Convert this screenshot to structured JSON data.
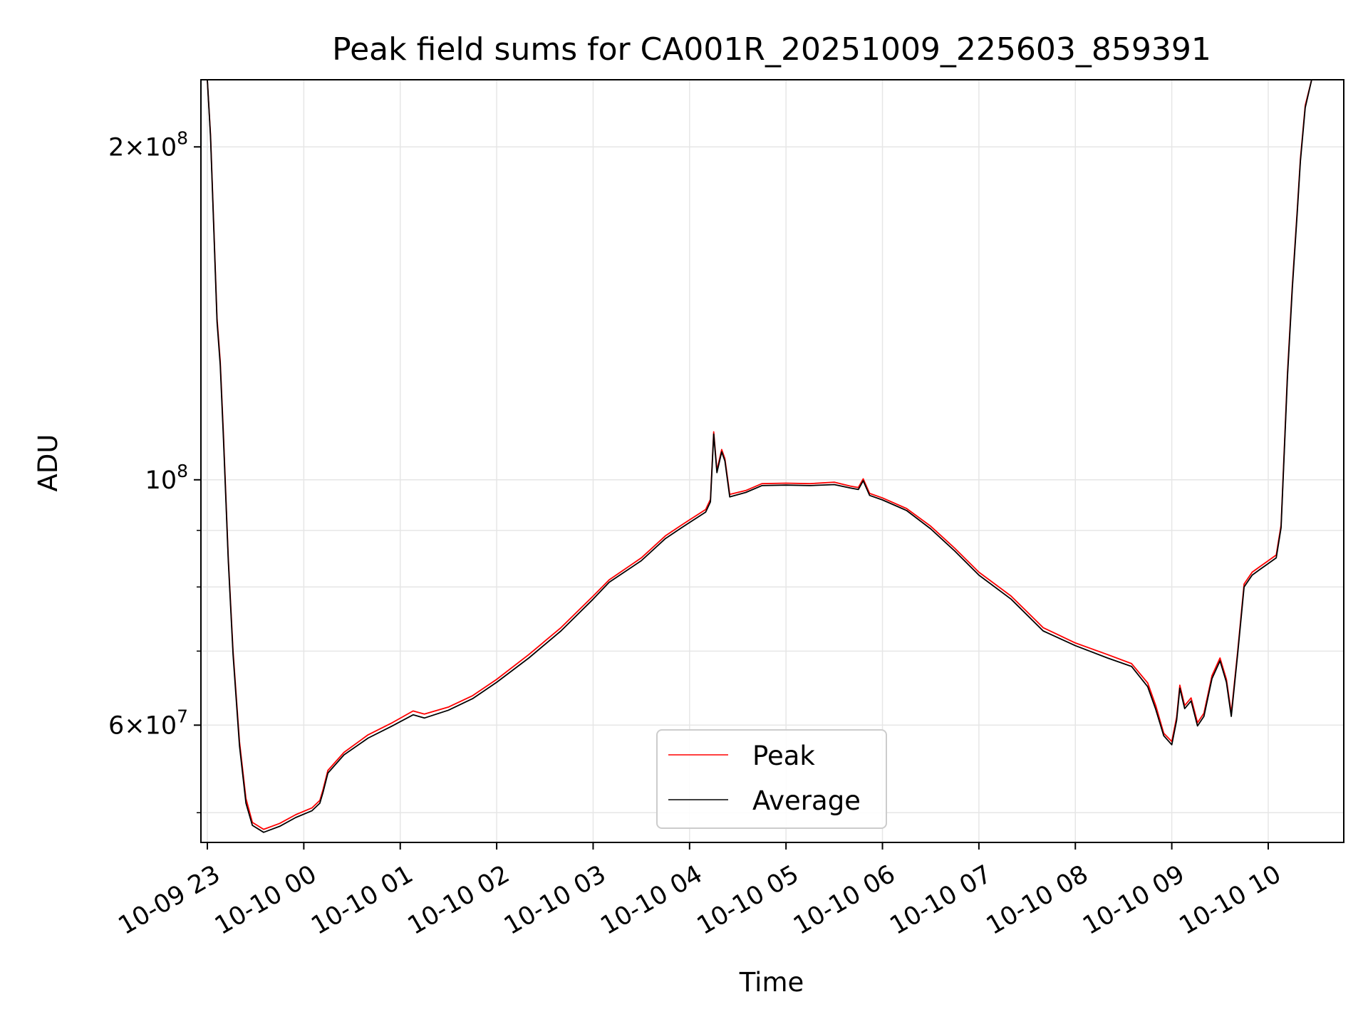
{
  "chart_data": {
    "type": "line",
    "title": "Peak field sums for CA001R_20251009_225603_859391",
    "xlabel": "Time",
    "ylabel": "ADU",
    "y_scale": "log",
    "ylim": [
      47000000,
      230000000
    ],
    "xlim": [
      "2025-10-09 22:56",
      "2025-10-10 10:47"
    ],
    "grid": true,
    "legend_position": "lower center",
    "x_ticks": [
      {
        "t": "2025-10-09 23:00",
        "label": "10-09 23"
      },
      {
        "t": "2025-10-10 00:00",
        "label": "10-10 00"
      },
      {
        "t": "2025-10-10 01:00",
        "label": "10-10 01"
      },
      {
        "t": "2025-10-10 02:00",
        "label": "10-10 02"
      },
      {
        "t": "2025-10-10 03:00",
        "label": "10-10 03"
      },
      {
        "t": "2025-10-10 04:00",
        "label": "10-10 04"
      },
      {
        "t": "2025-10-10 05:00",
        "label": "10-10 05"
      },
      {
        "t": "2025-10-10 06:00",
        "label": "10-10 06"
      },
      {
        "t": "2025-10-10 07:00",
        "label": "10-10 07"
      },
      {
        "t": "2025-10-10 08:00",
        "label": "10-10 08"
      },
      {
        "t": "2025-10-10 09:00",
        "label": "10-10 09"
      },
      {
        "t": "2025-10-10 10:00",
        "label": "10-10 10"
      }
    ],
    "y_major_ticks": [
      {
        "value": 60000000,
        "mant": "6",
        "exp": "7"
      },
      {
        "value": 100000000,
        "mant": "",
        "exp": "8"
      },
      {
        "value": 200000000,
        "mant": "2",
        "exp": "8"
      }
    ],
    "y_minor_ticks": [
      50000000,
      70000000,
      80000000,
      90000000
    ],
    "colors": {
      "peak": "#ff0000",
      "average": "#000000",
      "grid": "#e6e6e6"
    },
    "series": [
      {
        "name": "Peak",
        "color": "#ff0000",
        "points": [
          [
            "2025-10-09 22:57",
            230000000
          ],
          [
            "2025-10-09 23:00",
            230000000
          ],
          [
            "2025-10-09 23:02",
            205000000
          ],
          [
            "2025-10-09 23:04",
            170000000
          ],
          [
            "2025-10-09 23:06",
            140000000
          ],
          [
            "2025-10-09 23:08",
            128000000
          ],
          [
            "2025-10-09 23:10",
            110000000
          ],
          [
            "2025-10-09 23:13",
            85000000
          ],
          [
            "2025-10-09 23:16",
            70000000
          ],
          [
            "2025-10-09 23:20",
            58000000
          ],
          [
            "2025-10-09 23:24",
            51500000
          ],
          [
            "2025-10-09 23:28",
            49000000
          ],
          [
            "2025-10-09 23:35",
            48300000
          ],
          [
            "2025-10-09 23:45",
            48900000
          ],
          [
            "2025-10-09 23:55",
            49800000
          ],
          [
            "2025-10-10 00:05",
            50500000
          ],
          [
            "2025-10-10 00:10",
            51300000
          ],
          [
            "2025-10-10 00:12",
            52500000
          ],
          [
            "2025-10-10 00:15",
            54600000
          ],
          [
            "2025-10-10 00:25",
            56700000
          ],
          [
            "2025-10-10 00:40",
            58800000
          ],
          [
            "2025-10-10 00:55",
            60300000
          ],
          [
            "2025-10-10 01:08",
            61800000
          ],
          [
            "2025-10-10 01:15",
            61400000
          ],
          [
            "2025-10-10 01:30",
            62300000
          ],
          [
            "2025-10-10 01:45",
            63800000
          ],
          [
            "2025-10-10 02:00",
            66000000
          ],
          [
            "2025-10-10 02:20",
            69500000
          ],
          [
            "2025-10-10 02:40",
            73500000
          ],
          [
            "2025-10-10 03:00",
            78500000
          ],
          [
            "2025-10-10 03:10",
            81200000
          ],
          [
            "2025-10-10 03:30",
            85000000
          ],
          [
            "2025-10-10 03:45",
            89000000
          ],
          [
            "2025-10-10 03:55",
            91000000
          ],
          [
            "2025-10-10 04:00",
            92000000
          ],
          [
            "2025-10-10 04:10",
            94000000
          ],
          [
            "2025-10-10 04:13",
            96000000
          ],
          [
            "2025-10-10 04:15",
            110500000
          ],
          [
            "2025-10-10 04:17",
            102000000
          ],
          [
            "2025-10-10 04:20",
            106500000
          ],
          [
            "2025-10-10 04:22",
            104500000
          ],
          [
            "2025-10-10 04:25",
            97000000
          ],
          [
            "2025-10-10 04:35",
            97800000
          ],
          [
            "2025-10-10 04:45",
            99200000
          ],
          [
            "2025-10-10 05:00",
            99300000
          ],
          [
            "2025-10-10 05:15",
            99200000
          ],
          [
            "2025-10-10 05:30",
            99500000
          ],
          [
            "2025-10-10 05:40",
            98700000
          ],
          [
            "2025-10-10 05:45",
            98400000
          ],
          [
            "2025-10-10 05:48",
            100200000
          ],
          [
            "2025-10-10 05:52",
            97200000
          ],
          [
            "2025-10-10 06:00",
            96300000
          ],
          [
            "2025-10-10 06:15",
            94200000
          ],
          [
            "2025-10-10 06:30",
            90800000
          ],
          [
            "2025-10-10 06:45",
            86700000
          ],
          [
            "2025-10-10 07:00",
            82500000
          ],
          [
            "2025-10-10 07:20",
            78500000
          ],
          [
            "2025-10-10 07:40",
            73500000
          ],
          [
            "2025-10-10 08:00",
            71200000
          ],
          [
            "2025-10-10 08:20",
            69500000
          ],
          [
            "2025-10-10 08:35",
            68200000
          ],
          [
            "2025-10-10 08:45",
            65500000
          ],
          [
            "2025-10-10 08:50",
            62500000
          ],
          [
            "2025-10-10 08:55",
            59000000
          ],
          [
            "2025-10-10 09:00",
            58000000
          ],
          [
            "2025-10-10 09:03",
            61000000
          ],
          [
            "2025-10-10 09:05",
            65200000
          ],
          [
            "2025-10-10 09:08",
            62500000
          ],
          [
            "2025-10-10 09:12",
            63500000
          ],
          [
            "2025-10-10 09:16",
            60300000
          ],
          [
            "2025-10-10 09:20",
            61500000
          ],
          [
            "2025-10-10 09:25",
            66500000
          ],
          [
            "2025-10-10 09:30",
            69000000
          ],
          [
            "2025-10-10 09:34",
            66000000
          ],
          [
            "2025-10-10 09:37",
            61500000
          ],
          [
            "2025-10-10 09:41",
            70000000
          ],
          [
            "2025-10-10 09:45",
            80500000
          ],
          [
            "2025-10-10 09:50",
            82500000
          ],
          [
            "2025-10-10 09:55",
            83500000
          ],
          [
            "2025-10-10 10:00",
            84500000
          ],
          [
            "2025-10-10 10:05",
            85500000
          ],
          [
            "2025-10-10 10:08",
            91000000
          ],
          [
            "2025-10-10 10:12",
            125000000
          ],
          [
            "2025-10-10 10:15",
            150000000
          ],
          [
            "2025-10-10 10:18",
            175000000
          ],
          [
            "2025-10-10 10:20",
            195000000
          ],
          [
            "2025-10-10 10:23",
            218000000
          ],
          [
            "2025-10-10 10:27",
            230000000
          ],
          [
            "2025-10-10 10:44",
            230000000
          ]
        ]
      },
      {
        "name": "Average",
        "color": "#000000",
        "points": [
          [
            "2025-10-09 22:57",
            230000000
          ],
          [
            "2025-10-09 23:00",
            230000000
          ],
          [
            "2025-10-09 23:02",
            204000000
          ],
          [
            "2025-10-09 23:04",
            169000000
          ],
          [
            "2025-10-09 23:06",
            139000000
          ],
          [
            "2025-10-09 23:08",
            127000000
          ],
          [
            "2025-10-09 23:10",
            109000000
          ],
          [
            "2025-10-09 23:13",
            84500000
          ],
          [
            "2025-10-09 23:16",
            69500000
          ],
          [
            "2025-10-09 23:20",
            57500000
          ],
          [
            "2025-10-09 23:24",
            51000000
          ],
          [
            "2025-10-09 23:28",
            48700000
          ],
          [
            "2025-10-09 23:35",
            48000000
          ],
          [
            "2025-10-09 23:45",
            48600000
          ],
          [
            "2025-10-09 23:55",
            49500000
          ],
          [
            "2025-10-10 00:05",
            50200000
          ],
          [
            "2025-10-10 00:10",
            51000000
          ],
          [
            "2025-10-10 00:12",
            52200000
          ],
          [
            "2025-10-10 00:15",
            54300000
          ],
          [
            "2025-10-10 00:25",
            56400000
          ],
          [
            "2025-10-10 00:40",
            58400000
          ],
          [
            "2025-10-10 00:55",
            59900000
          ],
          [
            "2025-10-10 01:08",
            61300000
          ],
          [
            "2025-10-10 01:15",
            60900000
          ],
          [
            "2025-10-10 01:30",
            61900000
          ],
          [
            "2025-10-10 01:45",
            63400000
          ],
          [
            "2025-10-10 02:00",
            65600000
          ],
          [
            "2025-10-10 02:20",
            69000000
          ],
          [
            "2025-10-10 02:40",
            73000000
          ],
          [
            "2025-10-10 03:00",
            78000000
          ],
          [
            "2025-10-10 03:10",
            80800000
          ],
          [
            "2025-10-10 03:30",
            84500000
          ],
          [
            "2025-10-10 03:45",
            88500000
          ],
          [
            "2025-10-10 03:55",
            90500000
          ],
          [
            "2025-10-10 04:00",
            91500000
          ],
          [
            "2025-10-10 04:10",
            93500000
          ],
          [
            "2025-10-10 04:13",
            95500000
          ],
          [
            "2025-10-10 04:15",
            110000000
          ],
          [
            "2025-10-10 04:17",
            101500000
          ],
          [
            "2025-10-10 04:20",
            106000000
          ],
          [
            "2025-10-10 04:22",
            104000000
          ],
          [
            "2025-10-10 04:25",
            96500000
          ],
          [
            "2025-10-10 04:35",
            97400000
          ],
          [
            "2025-10-10 04:45",
            98800000
          ],
          [
            "2025-10-10 05:00",
            98900000
          ],
          [
            "2025-10-10 05:15",
            98800000
          ],
          [
            "2025-10-10 05:30",
            99000000
          ],
          [
            "2025-10-10 05:40",
            98300000
          ],
          [
            "2025-10-10 05:45",
            98000000
          ],
          [
            "2025-10-10 05:48",
            99800000
          ],
          [
            "2025-10-10 05:52",
            96800000
          ],
          [
            "2025-10-10 06:00",
            95900000
          ],
          [
            "2025-10-10 06:15",
            93800000
          ],
          [
            "2025-10-10 06:30",
            90300000
          ],
          [
            "2025-10-10 06:45",
            86200000
          ],
          [
            "2025-10-10 07:00",
            82000000
          ],
          [
            "2025-10-10 07:20",
            78000000
          ],
          [
            "2025-10-10 07:40",
            73000000
          ],
          [
            "2025-10-10 08:00",
            70800000
          ],
          [
            "2025-10-10 08:20",
            69000000
          ],
          [
            "2025-10-10 08:35",
            67800000
          ],
          [
            "2025-10-10 08:45",
            65000000
          ],
          [
            "2025-10-10 08:50",
            62000000
          ],
          [
            "2025-10-10 08:55",
            58700000
          ],
          [
            "2025-10-10 09:00",
            57600000
          ],
          [
            "2025-10-10 09:03",
            60600000
          ],
          [
            "2025-10-10 09:05",
            64800000
          ],
          [
            "2025-10-10 09:08",
            62100000
          ],
          [
            "2025-10-10 09:12",
            63100000
          ],
          [
            "2025-10-10 09:16",
            59900000
          ],
          [
            "2025-10-10 09:20",
            61100000
          ],
          [
            "2025-10-10 09:25",
            66100000
          ],
          [
            "2025-10-10 09:30",
            68600000
          ],
          [
            "2025-10-10 09:34",
            65600000
          ],
          [
            "2025-10-10 09:37",
            61100000
          ],
          [
            "2025-10-10 09:41",
            69600000
          ],
          [
            "2025-10-10 09:45",
            80000000
          ],
          [
            "2025-10-10 09:50",
            82000000
          ],
          [
            "2025-10-10 09:55",
            83000000
          ],
          [
            "2025-10-10 10:00",
            84000000
          ],
          [
            "2025-10-10 10:05",
            85000000
          ],
          [
            "2025-10-10 10:08",
            90500000
          ],
          [
            "2025-10-10 10:12",
            124000000
          ],
          [
            "2025-10-10 10:15",
            149000000
          ],
          [
            "2025-10-10 10:18",
            174000000
          ],
          [
            "2025-10-10 10:20",
            194000000
          ],
          [
            "2025-10-10 10:23",
            217000000
          ],
          [
            "2025-10-10 10:27",
            230000000
          ],
          [
            "2025-10-10 10:44",
            230000000
          ]
        ]
      }
    ]
  }
}
